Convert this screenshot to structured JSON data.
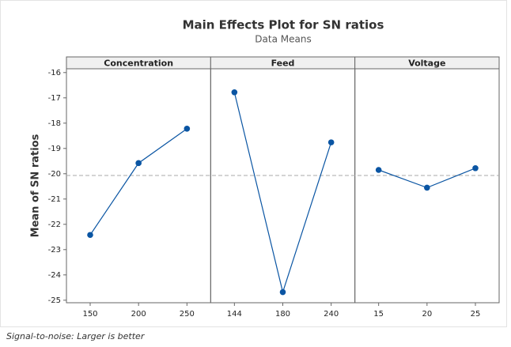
{
  "chart_data": {
    "type": "line",
    "title": "Main Effects Plot for SN ratios",
    "subtitle": "Data Means",
    "y_label": "Mean of SN ratios",
    "footnote": "Signal-to-noise: Larger is better",
    "color": "#0a55a3",
    "panels": [
      {
        "name": "Concentration",
        "categories": [
          "150",
          "200",
          "250"
        ],
        "values": [
          -22.42,
          -19.58,
          -18.22
        ]
      },
      {
        "name": "Feed",
        "categories": [
          "144",
          "180",
          "240"
        ],
        "values": [
          -16.78,
          -24.68,
          -18.76
        ]
      },
      {
        "name": "Voltage",
        "categories": [
          "15",
          "20",
          "25"
        ],
        "values": [
          -19.85,
          -20.55,
          -19.78
        ]
      }
    ],
    "reference_line": -20.07,
    "ylim": [
      -25.1,
      -15.85
    ],
    "yticks": [
      -25,
      -24,
      -23,
      -22,
      -21,
      -20,
      -19,
      -18,
      -17,
      -16
    ]
  }
}
